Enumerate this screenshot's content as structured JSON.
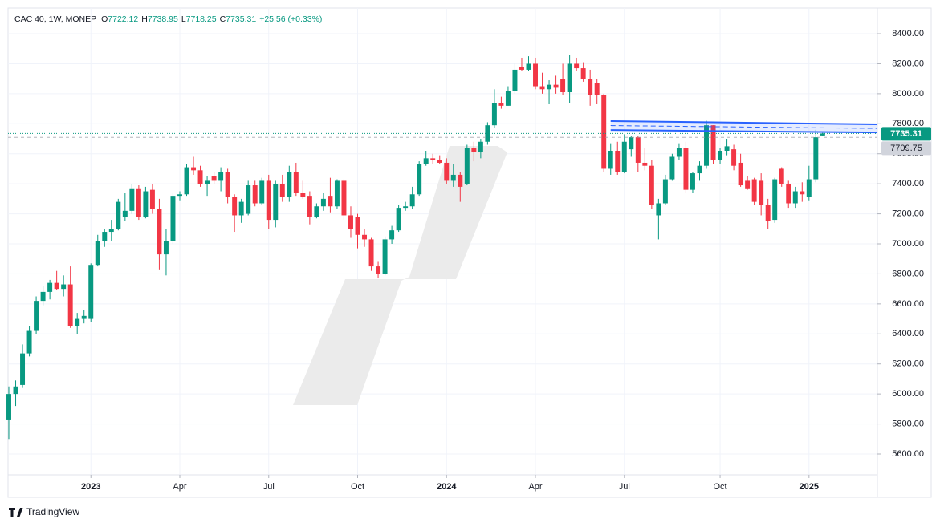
{
  "chart_data": {
    "type": "candlestick",
    "symbol": "CAC 40, 1W, MONEP",
    "ohlc_letters": [
      "O",
      "H",
      "L",
      "C"
    ],
    "change": "+25.56 (+0.33%)",
    "up_color": "#089981",
    "down_color": "#f23645",
    "x": [
      0,
      1,
      2,
      3,
      4,
      5,
      6,
      7,
      8,
      9,
      10,
      11,
      12,
      13,
      14,
      15,
      16,
      17,
      18,
      19,
      20,
      21,
      22,
      23,
      24,
      25,
      26,
      27,
      28,
      29,
      30,
      31,
      32,
      33,
      34,
      35,
      36,
      37,
      38,
      39,
      40,
      41,
      42,
      43,
      44,
      45,
      46,
      47,
      48,
      49,
      50,
      51,
      52,
      53,
      54,
      55,
      56,
      57,
      58,
      59,
      60,
      61,
      62,
      63,
      64,
      65,
      66,
      67,
      68,
      69,
      70,
      71,
      72,
      73,
      74,
      75,
      76,
      77,
      78,
      79,
      80,
      81,
      82,
      83,
      84,
      85,
      86,
      87,
      88,
      89,
      90,
      91,
      92,
      93,
      94,
      95,
      96,
      97,
      98,
      99,
      100,
      101,
      102,
      103,
      104,
      105,
      106,
      107,
      108,
      109,
      110,
      111,
      112,
      113,
      114,
      115,
      116,
      117,
      118,
      119
    ],
    "open": [
      5830,
      6000,
      6060,
      6270,
      6420,
      6620,
      6680,
      6740,
      6700,
      6730,
      6450,
      6500,
      6500,
      6860,
      7020,
      7080,
      7100,
      7180,
      7220,
      7370,
      7180,
      7360,
      7230,
      6930,
      7020,
      7320,
      7330,
      7510,
      7490,
      7400,
      7450,
      7420,
      7480,
      7310,
      7190,
      7200,
      7390,
      7270,
      7420,
      7160,
      7400,
      7310,
      7480,
      7340,
      7320,
      7180,
      7250,
      7320,
      7250,
      7420,
      7190,
      7180,
      7060,
      7030,
      6850,
      6800,
      7030,
      7090,
      7240,
      7250,
      7330,
      7530,
      7570,
      7560,
      7540,
      7420,
      7460,
      7400,
      7640,
      7610,
      7680,
      7790,
      7940,
      7920,
      8020,
      8180,
      8160,
      8200,
      8050,
      8030,
      8060,
      8100,
      8010,
      8200,
      8170,
      8100,
      8070,
      7990,
      7500,
      7620,
      7480,
      7630,
      7710,
      7540,
      7520,
      7190,
      7270,
      7430,
      7580,
      7640,
      7360,
      7470,
      7520,
      7790,
      7560,
      7620,
      7630,
      7540,
      7420,
      7430,
      7420,
      7260,
      7160,
      7500,
      7400,
      7270,
      7350,
      7310,
      7430,
      7722.12
    ],
    "high": [
      6050,
      6090,
      6330,
      6450,
      6650,
      6720,
      6760,
      6820,
      6790,
      6850,
      6540,
      6560,
      6870,
      7060,
      7100,
      7160,
      7300,
      7340,
      7400,
      7390,
      7380,
      7400,
      7300,
      7100,
      7340,
      7350,
      7530,
      7580,
      7520,
      7450,
      7480,
      7510,
      7500,
      7330,
      7300,
      7420,
      7420,
      7440,
      7460,
      7420,
      7460,
      7520,
      7540,
      7420,
      7350,
      7270,
      7340,
      7440,
      7430,
      7430,
      7250,
      7200,
      7100,
      7040,
      6880,
      7050,
      7120,
      7260,
      7280,
      7380,
      7550,
      7620,
      7600,
      7590,
      7570,
      7530,
      7480,
      7660,
      7680,
      7700,
      7810,
      8030,
      7980,
      8050,
      8200,
      8240,
      8250,
      8240,
      8140,
      8090,
      8120,
      8200,
      8260,
      8240,
      8210,
      8160,
      8100,
      8000,
      7670,
      7680,
      7730,
      7720,
      7720,
      7640,
      7560,
      7300,
      7460,
      7600,
      7670,
      7680,
      7480,
      7550,
      7820,
      7790,
      7640,
      7700,
      7660,
      7600,
      7450,
      7440,
      7470,
      7300,
      7440,
      7510,
      7420,
      7380,
      7410,
      7520,
      7760,
      7738.95
    ],
    "low": [
      5700,
      5920,
      6040,
      6250,
      6400,
      6590,
      6630,
      6690,
      6650,
      6440,
      6400,
      6470,
      6480,
      6850,
      6980,
      7020,
      7090,
      7150,
      7200,
      7160,
      7170,
      7200,
      6830,
      6790,
      7000,
      7290,
      7320,
      7460,
      7380,
      7320,
      7400,
      7350,
      7270,
      7080,
      7140,
      7190,
      7250,
      7260,
      7100,
      7110,
      7280,
      7280,
      7320,
      7300,
      7130,
      7170,
      7220,
      7210,
      7230,
      7160,
      7040,
      6970,
      6980,
      6820,
      6770,
      6790,
      7000,
      7080,
      7220,
      7230,
      7320,
      7520,
      7530,
      7530,
      7400,
      7380,
      7280,
      7390,
      7550,
      7570,
      7660,
      7770,
      7900,
      7920,
      8000,
      8150,
      8150,
      8030,
      8000,
      7930,
      8000,
      7990,
      7940,
      8150,
      8080,
      7920,
      7930,
      7480,
      7460,
      7460,
      7470,
      7580,
      7480,
      7490,
      7230,
      7030,
      7260,
      7420,
      7560,
      7340,
      7340,
      7420,
      7500,
      7530,
      7530,
      7590,
      7490,
      7380,
      7360,
      7260,
      7190,
      7100,
      7140,
      7380,
      7240,
      7240,
      7280,
      7290,
      7410,
      7718.25
    ],
    "close": [
      6000,
      6050,
      6270,
      6420,
      6620,
      6680,
      6740,
      6700,
      6730,
      6450,
      6500,
      6520,
      6860,
      7020,
      7080,
      7100,
      7280,
      7220,
      7370,
      7180,
      7350,
      7230,
      6930,
      7020,
      7320,
      7330,
      7510,
      7490,
      7400,
      7420,
      7420,
      7480,
      7310,
      7190,
      7280,
      7390,
      7270,
      7420,
      7160,
      7400,
      7310,
      7480,
      7340,
      7310,
      7180,
      7250,
      7300,
      7250,
      7420,
      7190,
      7100,
      7060,
      7030,
      6850,
      6800,
      7030,
      7090,
      7240,
      7250,
      7330,
      7530,
      7570,
      7560,
      7540,
      7420,
      7460,
      7380,
      7640,
      7610,
      7680,
      7790,
      7940,
      7920,
      8020,
      8160,
      8160,
      8200,
      8050,
      8030,
      8060,
      8040,
      8010,
      8200,
      8170,
      8100,
      7990,
      7990,
      7500,
      7620,
      7480,
      7680,
      7710,
      7540,
      7520,
      7260,
      7270,
      7430,
      7580,
      7640,
      7360,
      7470,
      7520,
      7790,
      7560,
      7620,
      7650,
      7520,
      7390,
      7370,
      7280,
      7260,
      7150,
      7430,
      7400,
      7270,
      7350,
      7330,
      7430,
      7710,
      7735.31
    ],
    "reference_price": 7709.75,
    "channel": {
      "x": [
        88,
        127
      ],
      "upper": [
        7818,
        7796
      ],
      "lower": [
        7758,
        7742
      ],
      "color": "#2962ff"
    },
    "xlim": [
      0,
      127
    ],
    "xticks": [
      {
        "value": 12,
        "label": "2023"
      },
      {
        "value": 25,
        "label": "Apr"
      },
      {
        "value": 38,
        "label": "Jul"
      },
      {
        "value": 51,
        "label": "Oct"
      },
      {
        "value": 64,
        "label": "2024"
      },
      {
        "value": 77,
        "label": "Apr"
      },
      {
        "value": 90,
        "label": "Jul"
      },
      {
        "value": 104,
        "label": "Oct"
      },
      {
        "value": 117,
        "label": "2025"
      }
    ],
    "ylim": [
      5461,
      8475
    ],
    "yticks": [
      {
        "value": 5600,
        "label": "5600.00"
      },
      {
        "value": 5800,
        "label": "5800.00"
      },
      {
        "value": 6000,
        "label": "6000.00"
      },
      {
        "value": 6200,
        "label": "6200.00"
      },
      {
        "value": 6400,
        "label": "6400.00"
      },
      {
        "value": 6600,
        "label": "6600.00"
      },
      {
        "value": 6800,
        "label": "6800.00"
      },
      {
        "value": 7000,
        "label": "7000.00"
      },
      {
        "value": 7200,
        "label": "7200.00"
      },
      {
        "value": 7400,
        "label": "7400.00"
      },
      {
        "value": 7600,
        "label": "7600.00"
      },
      {
        "value": 7800,
        "label": "7800.00"
      },
      {
        "value": 8000,
        "label": "8000.00"
      },
      {
        "value": 8200,
        "label": "8200.00"
      },
      {
        "value": 8400,
        "label": "8400.00"
      }
    ],
    "grid": true
  },
  "brand": "TradingView"
}
